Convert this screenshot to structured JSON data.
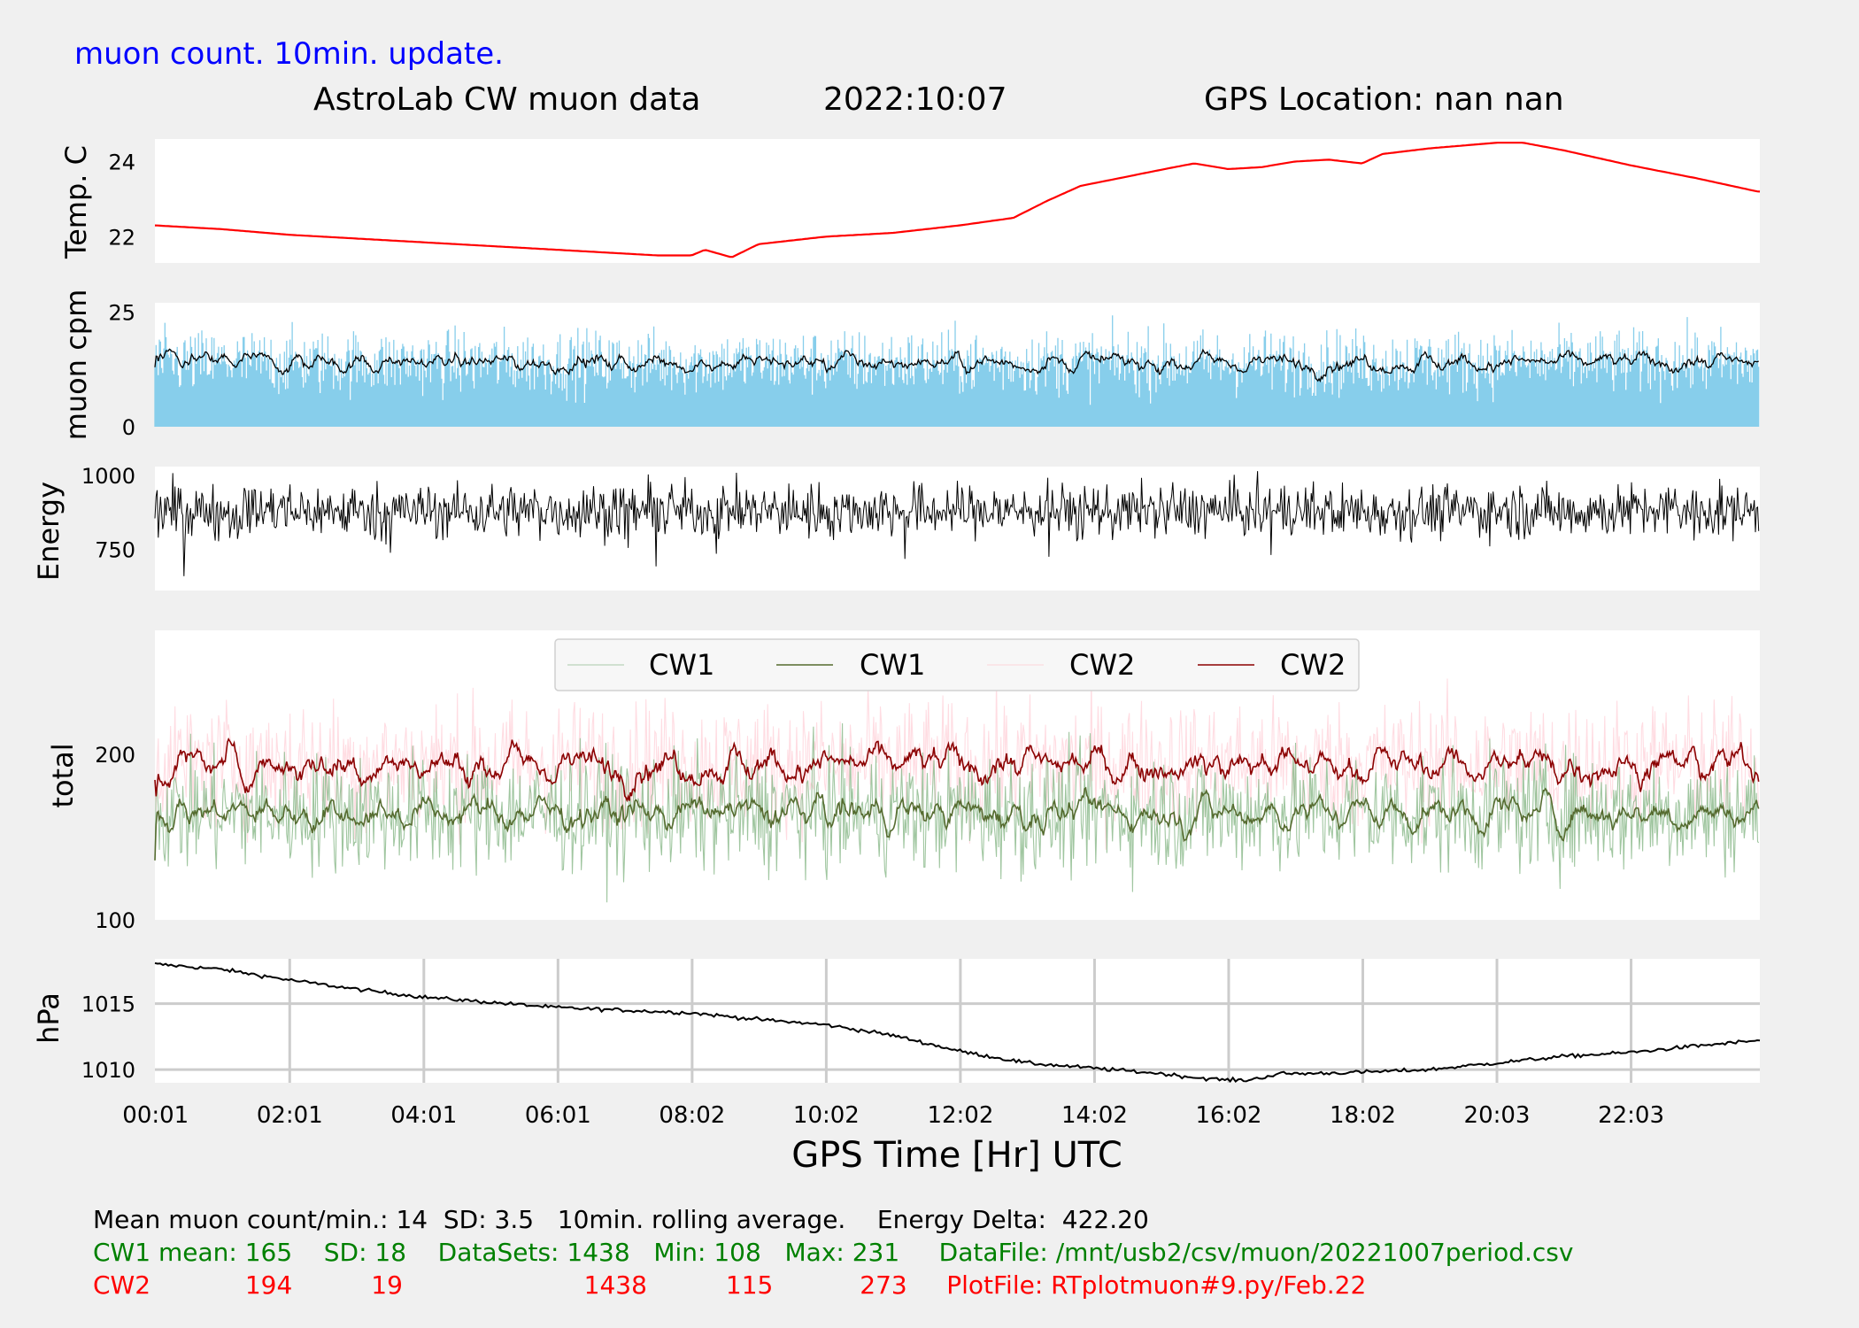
{
  "header": {
    "note": "muon count.  10min. update.",
    "title": "AstroLab CW muon data",
    "date": "2022:10:07",
    "location": "GPS Location: nan   nan"
  },
  "colors": {
    "figure_bg": "#f0f0f0",
    "axes_bg": "#ffffff",
    "temp": "#ff0000",
    "muon_bars": "#87ceeb",
    "rolling": "#000000",
    "cw1_raw": "#8fbc8f",
    "cw1_avg": "#556b2f",
    "cw2_raw": "#ffc0cb",
    "cw2_avg": "#8b0000",
    "note": "#0000ff",
    "stats_cw1": "#008000",
    "stats_cw2": "#ff0000"
  },
  "chart_data": [
    {
      "type": "line",
      "ylabel": "Temp. C",
      "yticks": [
        22,
        24
      ],
      "ylim": [
        21.3,
        24.6
      ],
      "series": [
        {
          "x": [
            0,
            0.5,
            1,
            2,
            3,
            4,
            5,
            6,
            7,
            7.5,
            8.0,
            8.2,
            8.6,
            9.0,
            10,
            11,
            12,
            12.8,
            13.3,
            13.8,
            14.5,
            15.2,
            15.5,
            16.0,
            16.5,
            17.0,
            17.5,
            18.0,
            18.3,
            19.0,
            20.0,
            20.4,
            21.0,
            22.0,
            23.0,
            23.9
          ],
          "y": [
            22.3,
            22.25,
            22.2,
            22.05,
            21.95,
            21.85,
            21.75,
            21.65,
            21.55,
            21.5,
            21.5,
            21.65,
            21.45,
            21.8,
            22.0,
            22.1,
            22.3,
            22.5,
            22.95,
            23.35,
            23.6,
            23.85,
            23.95,
            23.8,
            23.85,
            24.0,
            24.05,
            23.95,
            24.2,
            24.35,
            24.5,
            24.5,
            24.3,
            23.9,
            23.55,
            23.2
          ]
        }
      ]
    },
    {
      "type": "bar",
      "ylabel": "muon cpm",
      "yticks": [
        0,
        25
      ],
      "ylim": [
        0,
        27
      ],
      "bars": {
        "points": 1438,
        "mean": 14,
        "sd": 3.5
      },
      "rolling_average": {
        "window_min": 10
      }
    },
    {
      "type": "line",
      "ylabel": "Energy",
      "yticks": [
        750,
        1000
      ],
      "ylim": [
        610,
        1030
      ],
      "series": [
        {
          "points": 1438,
          "mean": 880,
          "range": [
            612,
            1015
          ]
        }
      ]
    },
    {
      "type": "line",
      "ylabel": "total",
      "yticks": [
        100,
        200
      ],
      "ylim": [
        100,
        275
      ],
      "legend": {
        "position": "top-center",
        "entries": [
          "CW1",
          "CW1",
          "CW2",
          "CW2"
        ]
      },
      "series": [
        {
          "name": "CW1",
          "kind": "raw",
          "mean": 165,
          "sd": 18,
          "min": 108,
          "max": 231
        },
        {
          "name": "CW1",
          "kind": "rolling",
          "mean": 165
        },
        {
          "name": "CW2",
          "kind": "raw",
          "mean": 194,
          "sd": 19,
          "min": 115,
          "max": 273
        },
        {
          "name": "CW2",
          "kind": "rolling",
          "mean": 194
        }
      ]
    },
    {
      "type": "line",
      "ylabel": "hPa",
      "yticks": [
        1010,
        1015
      ],
      "ylim": [
        1009.0,
        1018.4
      ],
      "grid": true,
      "series": [
        {
          "x": [
            0,
            1,
            2,
            3,
            4,
            5,
            6,
            7,
            8,
            9,
            10,
            11,
            12,
            13,
            14,
            15,
            15.5,
            16,
            16.3,
            16.8,
            17.2,
            18,
            19,
            20,
            21,
            22,
            23,
            23.9
          ],
          "y": [
            1018.0,
            1017.6,
            1016.8,
            1016.1,
            1015.5,
            1015.1,
            1014.7,
            1014.5,
            1014.3,
            1013.8,
            1013.4,
            1012.6,
            1011.4,
            1010.5,
            1010.1,
            1009.7,
            1009.4,
            1009.2,
            1009.2,
            1009.7,
            1009.7,
            1009.8,
            1010.0,
            1010.5,
            1011.0,
            1011.3,
            1011.8,
            1012.2
          ]
        }
      ],
      "xticks": [
        "00:01",
        "02:01",
        "04:01",
        "06:01",
        "08:02",
        "10:02",
        "12:02",
        "14:02",
        "16:02",
        "18:02",
        "20:03",
        "22:03"
      ],
      "xlabel": "GPS Time  [Hr] UTC"
    }
  ],
  "stats": {
    "line1": "Mean muon count/min.: 14  SD: 3.5   10min. rolling average.    Energy Delta:  422.20",
    "line2": "CW1 mean: 165    SD: 18    DataSets: 1438   Min: 108   Max: 231     DataFile: /mnt/usb2/csv/muon/20221007period.csv",
    "line3": "CW2            194          19                       1438          115           273     PlotFile: RTplotmuon#9.py/Feb.22"
  }
}
